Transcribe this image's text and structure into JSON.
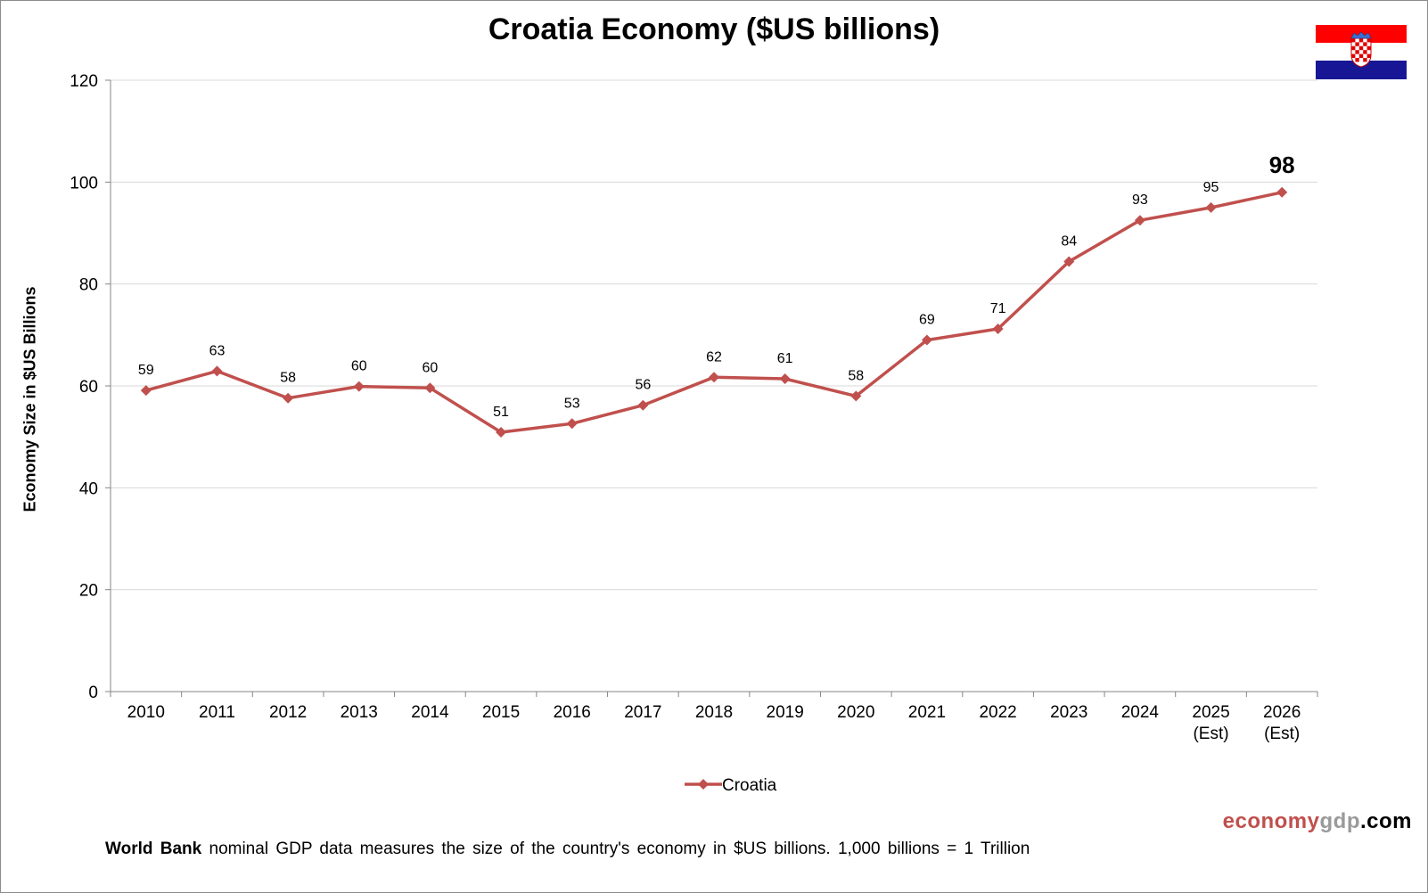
{
  "title": "Croatia Economy ($US billions)",
  "ylabel": "Economy Size in $US Billions",
  "brand": {
    "part1": "economy",
    "part2": "gdp",
    "part3": ".com"
  },
  "note": {
    "bold": "World Bank",
    "text": " nominal GDP data  measures the size of the country's economy in $US billions. 1,000 billions = 1 Trillion"
  },
  "flag": {
    "colors": [
      "#ff0000",
      "#ffffff",
      "#171796"
    ]
  },
  "chart_data": {
    "type": "line",
    "title": "Croatia Economy ($US billions)",
    "xlabel": "",
    "ylabel": "Economy Size in $US Billions",
    "ylim": [
      0,
      120
    ],
    "yticks": [
      0,
      20,
      40,
      60,
      80,
      100,
      120
    ],
    "grid": true,
    "legend": "bottom-center",
    "categories": [
      [
        "2010"
      ],
      [
        "2011"
      ],
      [
        "2012"
      ],
      [
        "2013"
      ],
      [
        "2014"
      ],
      [
        "2015"
      ],
      [
        "2016"
      ],
      [
        "2017"
      ],
      [
        "2018"
      ],
      [
        "2019"
      ],
      [
        "2020"
      ],
      [
        "2021"
      ],
      [
        "2022"
      ],
      [
        "2023"
      ],
      [
        "2024"
      ],
      [
        "2025",
        "(Est)"
      ],
      [
        "2026",
        "(Est)"
      ]
    ],
    "series": [
      {
        "name": "Croatia",
        "color": "#c0504d",
        "values": [
          59.1,
          62.9,
          57.6,
          59.9,
          59.6,
          50.9,
          52.6,
          56.2,
          61.7,
          61.4,
          58.0,
          69.0,
          71.2,
          84.4,
          92.5,
          95.0,
          98.0
        ],
        "labels": [
          "59",
          "63",
          "58",
          "60",
          "60",
          "51",
          "53",
          "56",
          "62",
          "61",
          "58",
          "69",
          "71",
          "84",
          "93",
          "95",
          "98"
        ]
      }
    ]
  }
}
